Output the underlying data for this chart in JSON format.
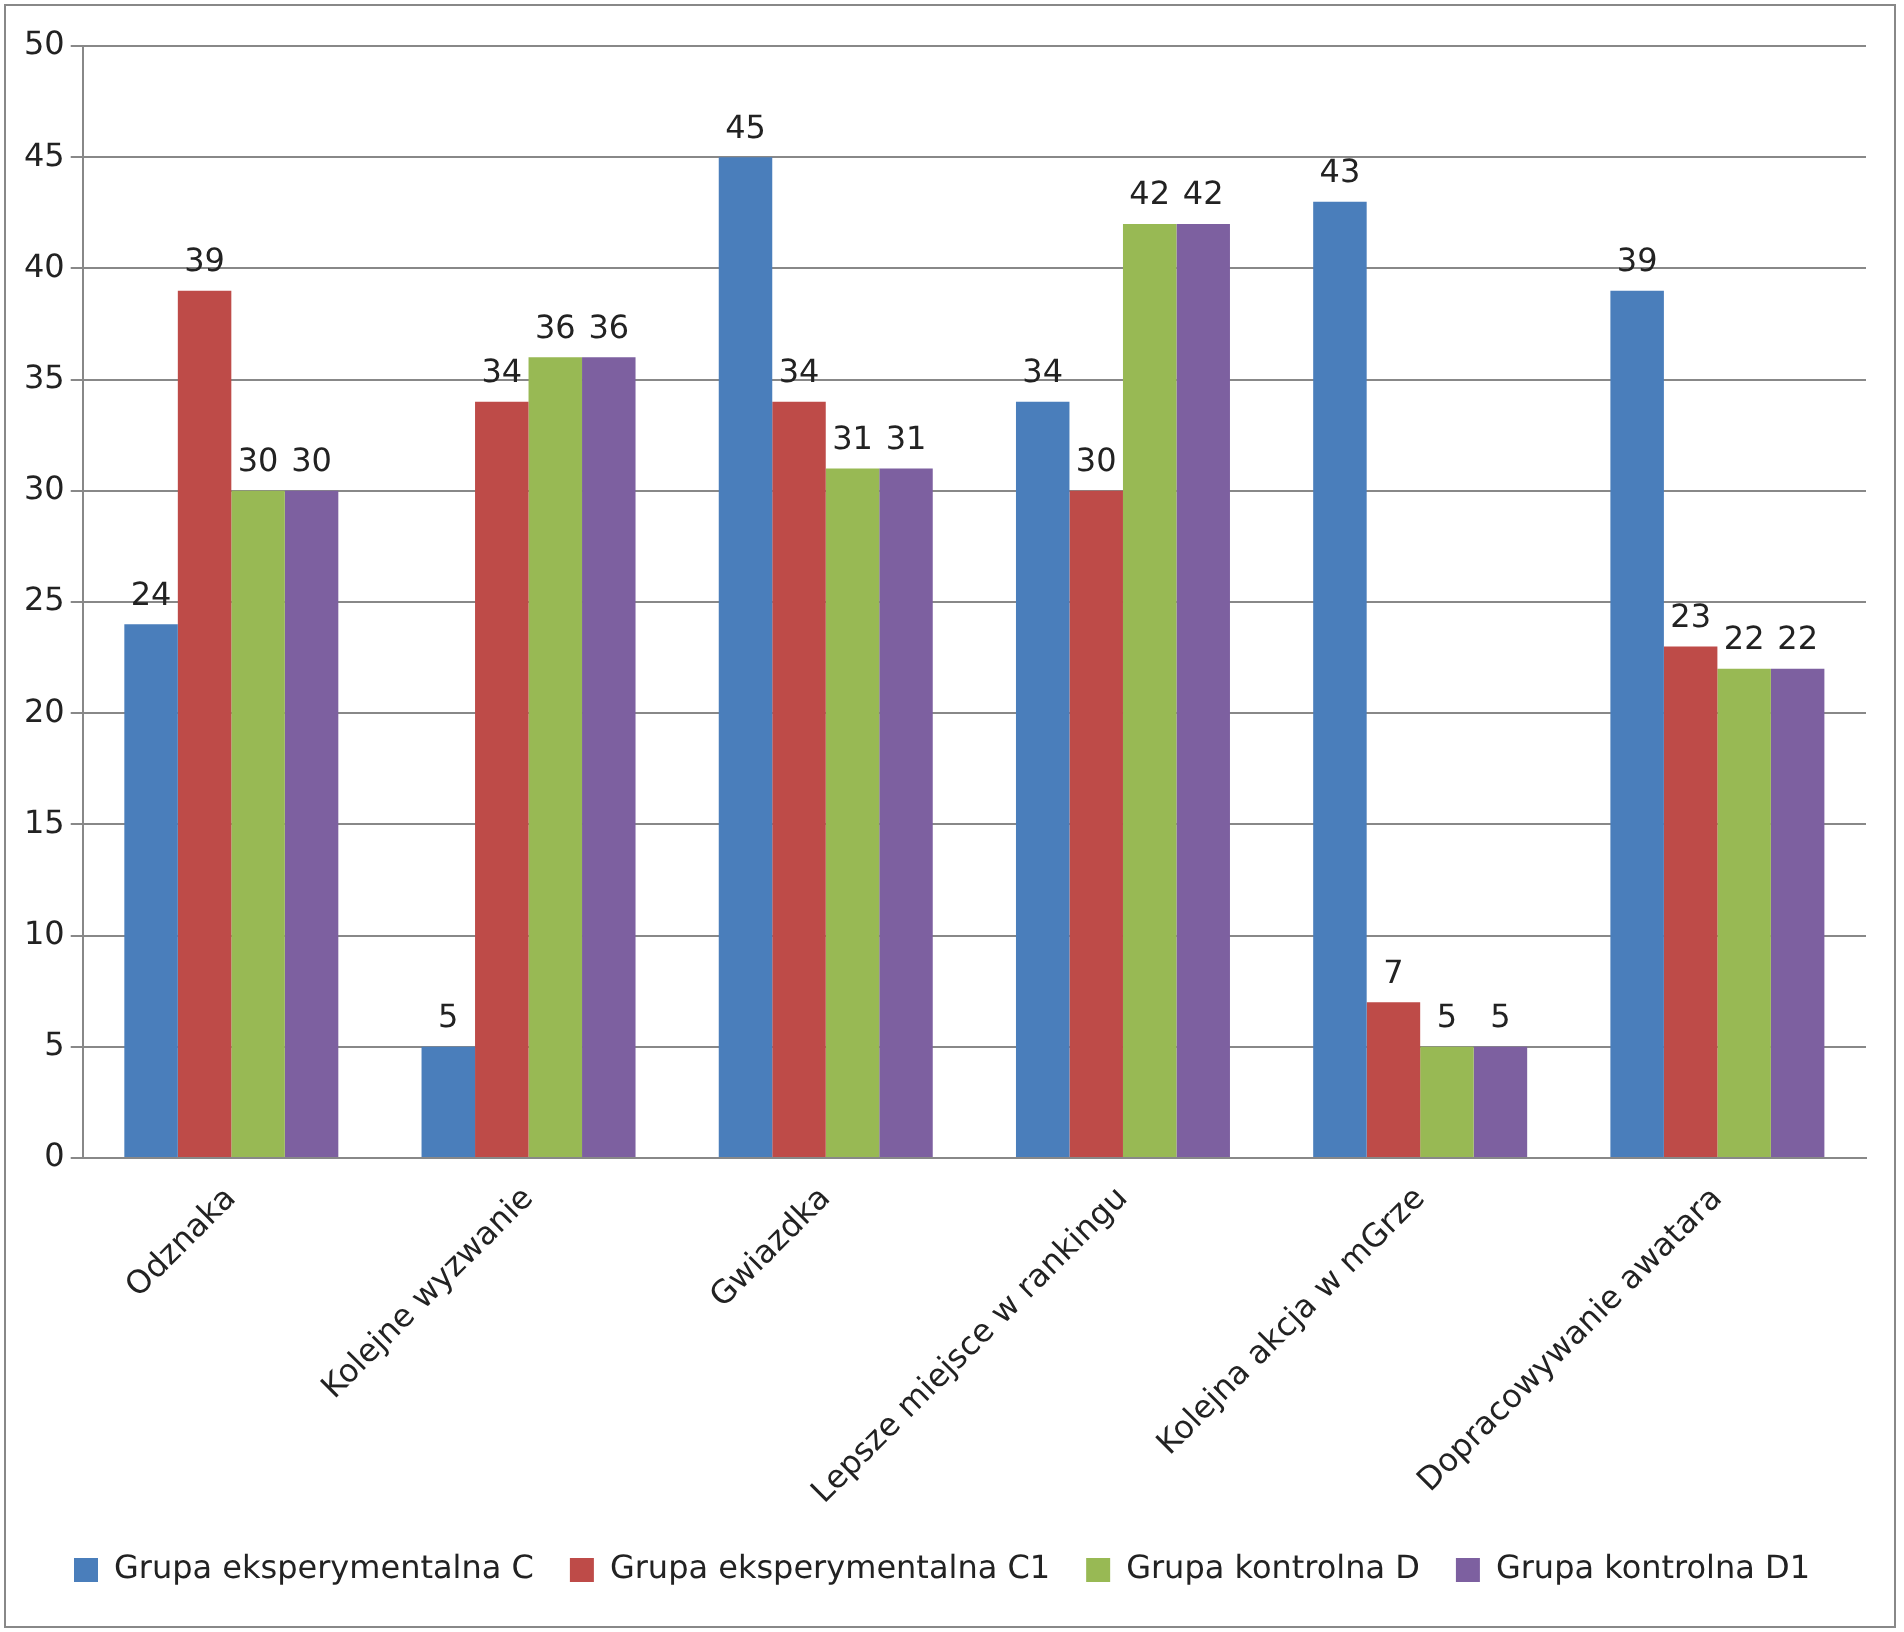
{
  "chart_data": {
    "type": "bar",
    "categories": [
      "Odznaka",
      "Kolejne wyzwanie",
      "Gwiazdka",
      "Lepsze miejsce w rankingu",
      "Kolejna akcja w mGrze",
      "Dopracowywanie awatara"
    ],
    "series": [
      {
        "name": "Grupa eksperymentalna C",
        "color": "#4a7ebb",
        "values": [
          24,
          5,
          45,
          34,
          43,
          39
        ]
      },
      {
        "name": "Grupa eksperymentalna C1",
        "color": "#be4b48",
        "values": [
          39,
          34,
          34,
          30,
          7,
          23
        ]
      },
      {
        "name": "Grupa kontrolna D",
        "color": "#98b954",
        "values": [
          30,
          36,
          31,
          42,
          5,
          22
        ]
      },
      {
        "name": "Grupa kontrolna D1",
        "color": "#7d60a0",
        "values": [
          30,
          36,
          31,
          42,
          5,
          22
        ]
      }
    ],
    "ylim": [
      0,
      50
    ],
    "yticks": [
      0,
      5,
      10,
      15,
      20,
      25,
      30,
      35,
      40,
      45,
      50
    ],
    "grid": "y",
    "legend": "bottom",
    "data_labels": true
  }
}
